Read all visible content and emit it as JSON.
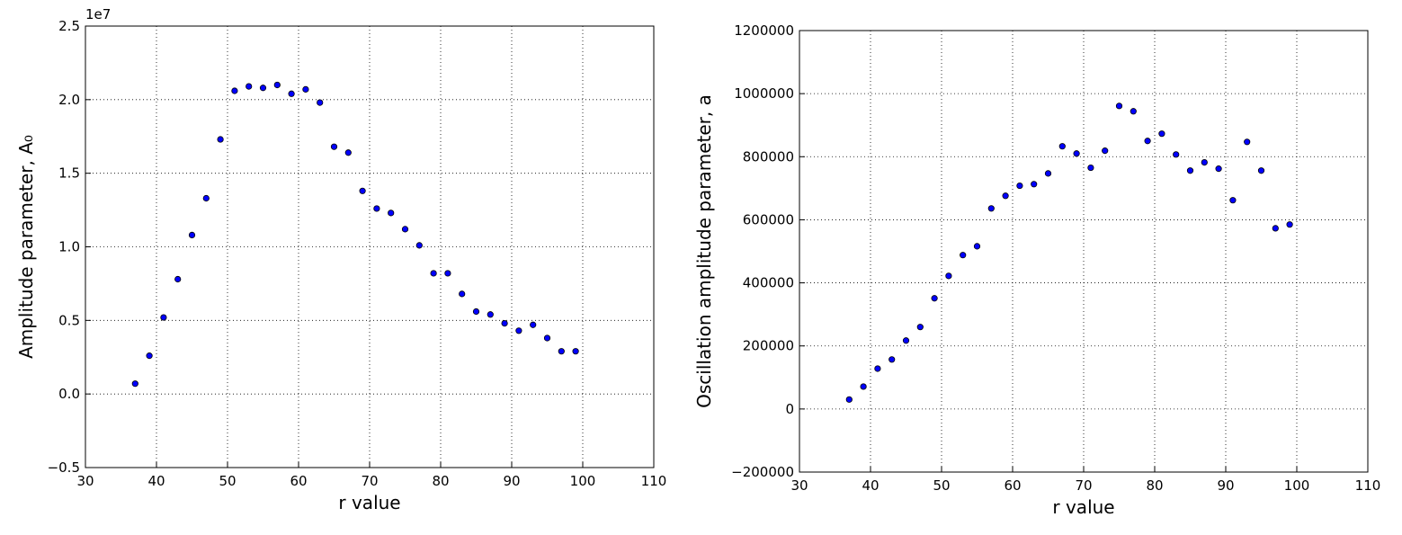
{
  "chart_data": [
    {
      "type": "scatter",
      "xlabel": "r value",
      "ylabel": "Amplitude parameter, A₀",
      "offset_label": "1e7",
      "color": "#0000ff",
      "grid": true,
      "x": [
        37,
        39,
        41,
        43,
        45,
        47,
        49,
        51,
        53,
        55,
        57,
        59,
        61,
        63,
        65,
        67,
        69,
        71,
        73,
        75,
        77,
        79,
        81,
        83,
        85,
        87,
        89,
        91,
        93,
        95,
        97,
        99
      ],
      "values": [
        0.07,
        0.26,
        0.52,
        0.78,
        1.08,
        1.33,
        1.73,
        2.06,
        2.09,
        2.08,
        2.1,
        2.04,
        2.07,
        1.98,
        1.68,
        1.64,
        1.38,
        1.26,
        1.23,
        1.12,
        1.01,
        0.82,
        0.82,
        0.68,
        0.56,
        0.54,
        0.48,
        0.43,
        0.47,
        0.38,
        0.29,
        0.29
      ],
      "xlim": [
        30,
        110
      ],
      "xticks": [
        30,
        40,
        50,
        60,
        70,
        80,
        90,
        100,
        110
      ],
      "ylim": [
        -0.5,
        2.5
      ],
      "yticks": [
        {
          "value": -0.5,
          "label": "−0.5"
        },
        {
          "value": 0,
          "label": "0.0"
        },
        0.5,
        {
          "value": 1,
          "label": "1.0"
        },
        1.5,
        {
          "value": 2,
          "label": "2.0"
        },
        2.5
      ]
    },
    {
      "type": "scatter",
      "xlabel": "r value",
      "ylabel": "Oscillation amplitude parameter, a",
      "color": "#0000ff",
      "grid": true,
      "x": [
        37,
        39,
        41,
        43,
        45,
        47,
        49,
        51,
        53,
        55,
        57,
        59,
        61,
        63,
        65,
        67,
        69,
        71,
        73,
        75,
        77,
        79,
        81,
        83,
        85,
        87,
        89,
        91,
        93,
        95,
        97,
        99
      ],
      "values": [
        30000,
        71000,
        128000,
        157000,
        217000,
        260000,
        351000,
        422000,
        488000,
        516000,
        636000,
        676000,
        708000,
        713000,
        747000,
        833000,
        810000,
        765000,
        819000,
        961000,
        944000,
        850000,
        873000,
        807000,
        756000,
        782000,
        762000,
        662000,
        847000,
        756000,
        573000,
        585000
      ],
      "xlim": [
        30,
        110
      ],
      "xticks": [
        30,
        40,
        50,
        60,
        70,
        80,
        90,
        100,
        110
      ],
      "ylim": [
        -200000,
        1200000
      ],
      "yticks": [
        {
          "value": -200000,
          "label": "−200000"
        },
        0,
        200000,
        400000,
        600000,
        800000,
        1000000,
        1200000
      ]
    }
  ]
}
